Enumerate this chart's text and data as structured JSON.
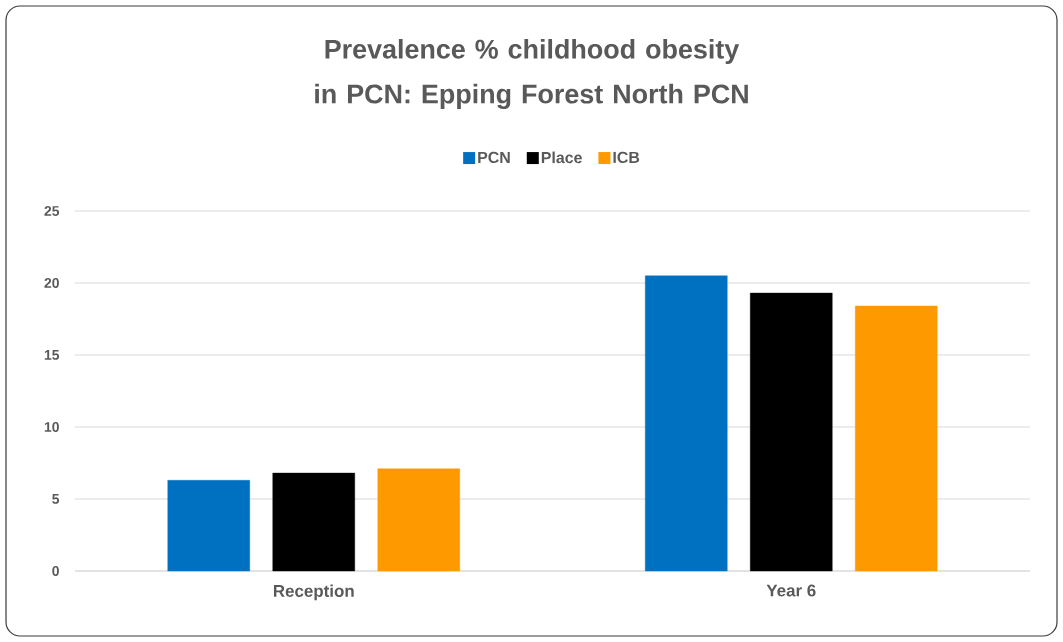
{
  "chart_data": {
    "type": "bar",
    "title": "Prevalence % childhood obesity in PCN: Epping Forest North PCN",
    "categories": [
      "Reception",
      "Year 6"
    ],
    "series": [
      {
        "name": "PCN",
        "color": "#0070c0",
        "values": [
          6.3,
          20.5
        ]
      },
      {
        "name": "Place",
        "color": "#000000",
        "values": [
          6.8,
          19.3
        ]
      },
      {
        "name": "ICB",
        "color": "#ff9900",
        "values": [
          7.1,
          18.4
        ]
      }
    ],
    "ylim": [
      0,
      25
    ],
    "yticks": [
      0,
      5,
      10,
      15,
      20,
      25
    ],
    "grid": "y",
    "legend": "top"
  }
}
